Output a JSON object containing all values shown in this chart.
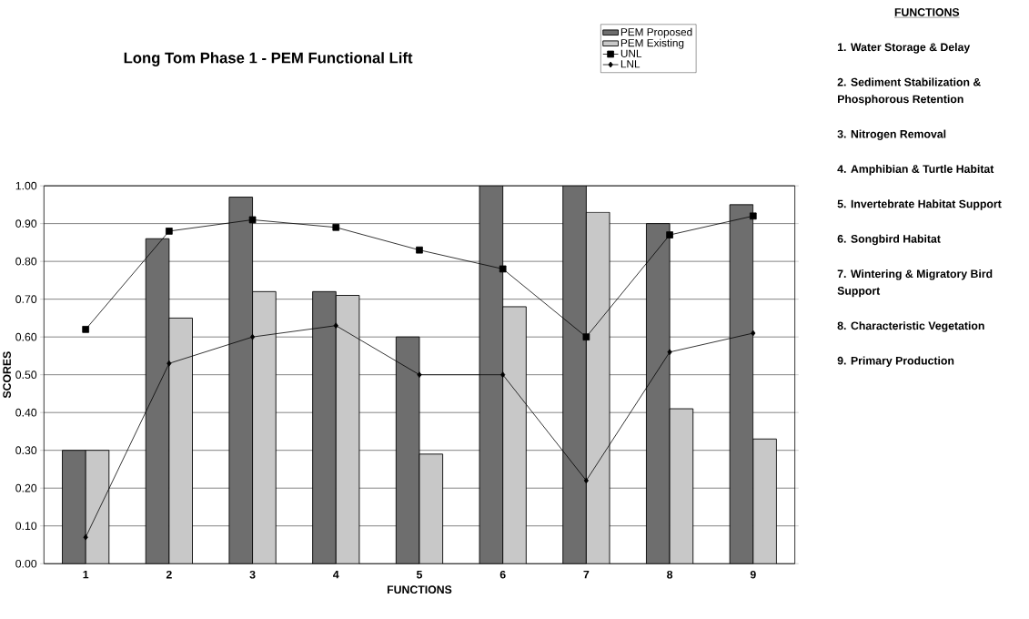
{
  "chart_data": {
    "type": "bar",
    "title": "Long Tom Phase 1 - PEM Functional Lift",
    "xlabel": "FUNCTIONS",
    "ylabel": "SCORES",
    "categories": [
      "1",
      "2",
      "3",
      "4",
      "5",
      "6",
      "7",
      "8",
      "9"
    ],
    "series": [
      {
        "name": "PEM Proposed",
        "color": "#6e6e6e",
        "values": [
          0.3,
          0.86,
          0.97,
          0.72,
          0.6,
          1.0,
          1.0,
          0.9,
          0.95
        ]
      },
      {
        "name": "PEM Existing",
        "color": "#c8c8c8",
        "values": [
          0.3,
          0.65,
          0.72,
          0.71,
          0.29,
          0.68,
          0.93,
          0.41,
          0.33
        ]
      },
      {
        "name": "UNL",
        "type": "line",
        "color": "#000000",
        "marker": "square",
        "values": [
          0.62,
          0.88,
          0.91,
          0.89,
          0.83,
          0.78,
          0.6,
          0.87,
          0.92
        ]
      },
      {
        "name": "LNL",
        "type": "line",
        "color": "#000000",
        "marker": "diamond",
        "values": [
          0.07,
          0.53,
          0.6,
          0.63,
          0.5,
          0.5,
          0.22,
          0.56,
          0.61
        ]
      }
    ],
    "ylim": [
      0,
      1
    ],
    "yticks": [
      {
        "value": 0,
        "label": "0.00"
      },
      {
        "value": 0.1,
        "label": "0.10"
      },
      {
        "value": 0.2,
        "label": "0.20"
      },
      {
        "value": 0.3,
        "label": "0.30"
      },
      {
        "value": 0.4,
        "label": "0.40"
      },
      {
        "value": 0.5,
        "label": "0.50"
      },
      {
        "value": 0.6,
        "label": "0.60"
      },
      {
        "value": 0.7,
        "label": "0.70"
      },
      {
        "value": 0.8,
        "label": "0.80"
      },
      {
        "value": 0.9,
        "label": "0.90"
      },
      {
        "value": 1,
        "label": "1.00"
      }
    ],
    "grid": "y",
    "legend": "top",
    "annotations": [
      "FUNCTIONS",
      "1. Water Storage & Delay",
      "2. Sediment Stabilization & Phosphorous Retention",
      "3. Nitrogen Removal",
      "4. Amphibian & Turtle Habitat",
      "5. Invertebrate Habitat Support",
      "6. Songbird Habitat",
      "7. Wintering & Migratory Bird Support",
      "8. Characteristic Vegetation",
      "9. Primary Production"
    ]
  }
}
